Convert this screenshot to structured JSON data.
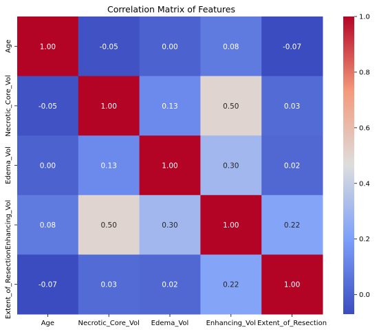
{
  "chart_data": {
    "type": "heatmap",
    "title": "Correlation Matrix of Features",
    "xlabel": "",
    "ylabel": "",
    "x_labels": [
      "Age",
      "Necrotic_Core_Vol",
      "Edema_Vol",
      "Enhancing_Vol",
      "Extent_of_Resection"
    ],
    "y_labels": [
      "Age",
      "Necrotic_Core_Vol",
      "Edema_Vol",
      "Enhancing_Vol",
      "Extent_of_Resection"
    ],
    "values": [
      [
        1.0,
        -0.05,
        0.0,
        0.08,
        -0.07
      ],
      [
        -0.05,
        1.0,
        0.13,
        0.5,
        0.03
      ],
      [
        0.0,
        0.13,
        1.0,
        0.3,
        0.02
      ],
      [
        0.08,
        0.5,
        0.3,
        1.0,
        0.22
      ],
      [
        -0.07,
        0.03,
        0.02,
        0.22,
        1.0
      ]
    ],
    "annotations": [
      [
        "1.00",
        "-0.05",
        "0.00",
        "0.08",
        "-0.07"
      ],
      [
        "-0.05",
        "1.00",
        "0.13",
        "0.50",
        "0.03"
      ],
      [
        "0.00",
        "0.13",
        "1.00",
        "0.30",
        "0.02"
      ],
      [
        "0.08",
        "0.50",
        "0.30",
        "1.00",
        "0.22"
      ],
      [
        "-0.07",
        "0.03",
        "0.02",
        "0.22",
        "1.00"
      ]
    ],
    "colormap": "coolwarm",
    "vmin": -0.07,
    "vmax": 1.0,
    "colorbar_ticks": [
      0.0,
      0.2,
      0.4,
      0.6,
      0.8,
      1.0
    ],
    "colorbar_tick_labels": [
      "0.0",
      "0.2",
      "0.4",
      "0.6",
      "0.8",
      "1.0"
    ],
    "legend": "colorbar-right",
    "grid": false
  }
}
